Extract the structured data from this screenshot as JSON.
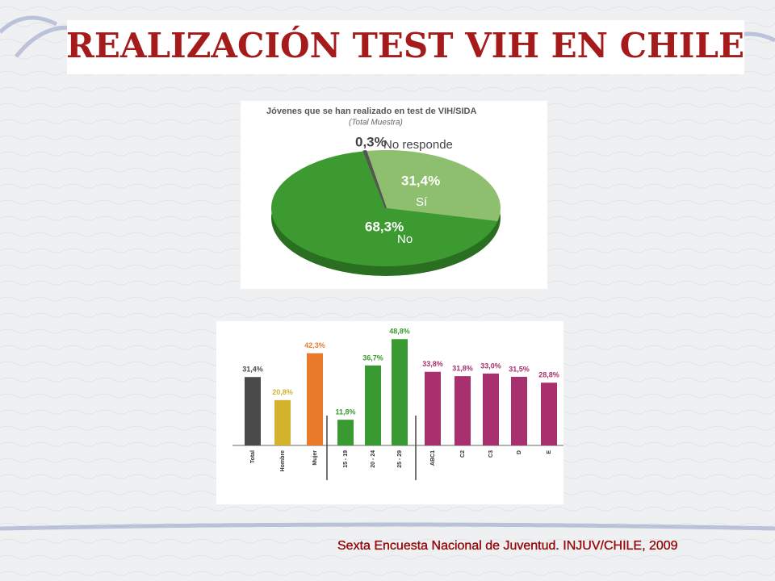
{
  "title": "REALIZACIÓN TEST VIH EN CHILE",
  "footer": "Sexta Encuesta Nacional de Juventud. INJUV/CHILE, 2009",
  "chart_data": [
    {
      "type": "pie",
      "title": "Jóvenes que se han realizado en test de VIH/SIDA",
      "subtitle": "(Total Muestra)",
      "categories": [
        "Sí",
        "No",
        "No responde"
      ],
      "values": [
        31.4,
        68.3,
        0.3
      ],
      "value_labels": [
        "31,4%",
        "68,3%",
        "0,3%"
      ],
      "colors": [
        "#8dbf6f",
        "#3c9a30",
        "#555555"
      ]
    },
    {
      "type": "bar",
      "categories": [
        "Total",
        "Hombre",
        "Mujer",
        "15 - 19",
        "20 - 24",
        "25 - 29",
        "ABC1",
        "C2",
        "C3",
        "D",
        "E"
      ],
      "values": [
        31.4,
        20.8,
        42.3,
        11.8,
        36.7,
        48.8,
        33.8,
        31.8,
        33.0,
        31.5,
        28.8
      ],
      "value_labels": [
        "31,4%",
        "20,8%",
        "42,3%",
        "11,8%",
        "36,7%",
        "48,8%",
        "33,8%",
        "31,8%",
        "33,0%",
        "31,5%",
        "28,8%"
      ],
      "colors": [
        "#4a4a4a",
        "#d4b22c",
        "#e87a2a",
        "#3a9a32",
        "#3a9a32",
        "#3a9a32",
        "#a8306e",
        "#a8306e",
        "#a8306e",
        "#a8306e",
        "#a8306e"
      ]
    }
  ]
}
